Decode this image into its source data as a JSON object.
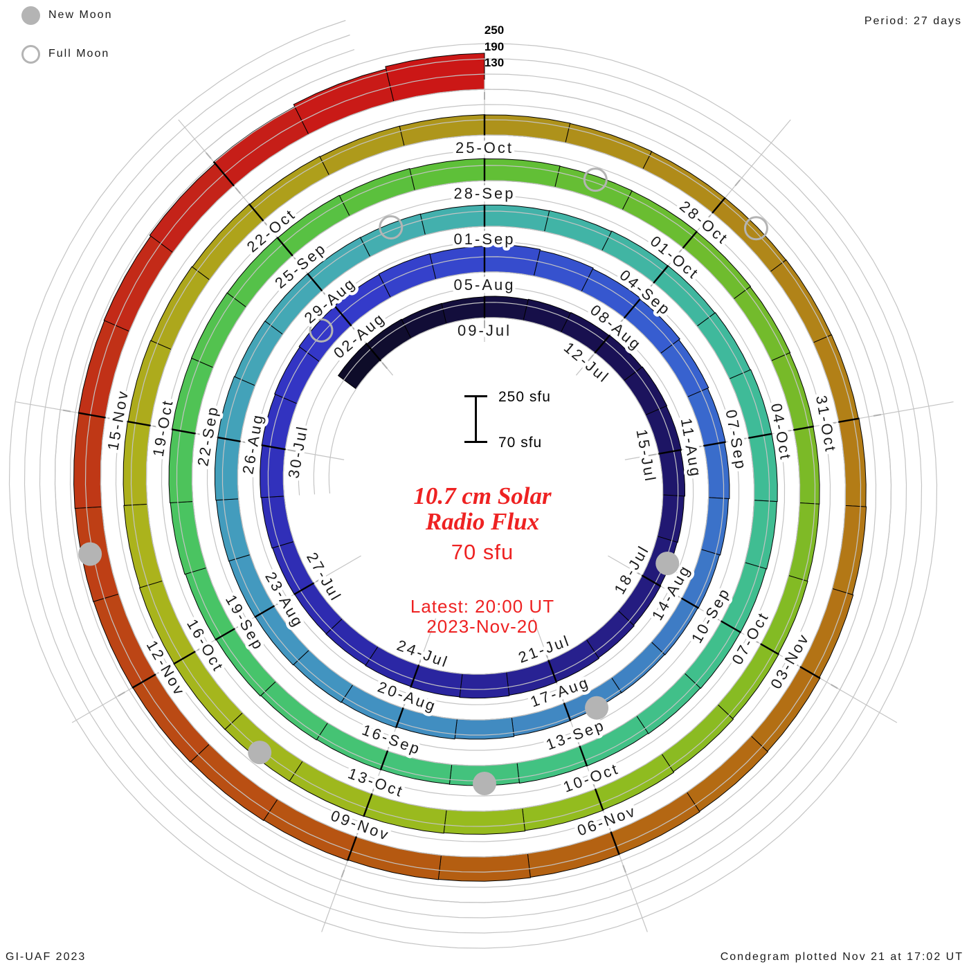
{
  "window": {
    "period_label": "Period: 27 days"
  },
  "legend": {
    "new_moon_label": "New Moon",
    "full_moon_label": "Full Moon"
  },
  "radial_scale_labels": [
    "250",
    "190",
    "130"
  ],
  "scale_bar": {
    "top_label": "250 sfu",
    "bottom_label": "70 sfu"
  },
  "center_text": {
    "title_line1": "10.7 cm Solar",
    "title_line2": "Radio Flux",
    "baseline_value": "70 sfu",
    "latest_line1": "Latest: 20:00 UT",
    "latest_line2": "2023-Nov-20"
  },
  "footer": {
    "credit": "GI-UAF 2023",
    "plotted": "Condegram plotted Nov 21 at 17:02 UT"
  },
  "chart_data": {
    "type": "spiral-bar-condegram",
    "title": "10.7 cm Solar Radio Flux",
    "units": "sfu",
    "period_days": 27,
    "baseline_sfu": 70,
    "radial_scale_max_sfu": 250,
    "gridline_levels_sfu": [
      70,
      130,
      190,
      250
    ],
    "series_start_date": "2023-07-05",
    "series_end_date": "2023-11-20",
    "latest_observation": "20:00 UT 2023-Nov-20",
    "date_labels": [
      "09-Jul",
      "12-Jul",
      "15-Jul",
      "18-Jul",
      "21-Jul",
      "24-Jul",
      "27-Jul",
      "30-Jul",
      "02-Aug",
      "05-Aug",
      "08-Aug",
      "11-Aug",
      "14-Aug",
      "17-Aug",
      "20-Aug",
      "23-Aug",
      "26-Aug",
      "29-Aug",
      "01-Sep",
      "04-Sep",
      "07-Sep",
      "10-Sep",
      "13-Sep",
      "16-Sep",
      "19-Sep",
      "22-Sep",
      "25-Sep",
      "28-Sep",
      "01-Oct",
      "04-Oct",
      "07-Oct",
      "10-Oct",
      "13-Oct",
      "16-Oct",
      "19-Oct",
      "22-Oct",
      "25-Oct",
      "28-Oct",
      "31-Oct",
      "03-Nov",
      "06-Nov",
      "09-Nov",
      "12-Nov",
      "15-Nov"
    ],
    "daily_flux_sfu_estimated": [
      158,
      155,
      153,
      152,
      154,
      156,
      158,
      160,
      162,
      160,
      157,
      154,
      152,
      154,
      157,
      160,
      162,
      164,
      162,
      160,
      158,
      157,
      158,
      160,
      162,
      164,
      167,
      170,
      172,
      174,
      172,
      178,
      174,
      170,
      166,
      161,
      157,
      153,
      149,
      146,
      144,
      142,
      141,
      143,
      146,
      149,
      152,
      154,
      156,
      157,
      158,
      160,
      160,
      158,
      157,
      156,
      155,
      154,
      154,
      155,
      157,
      158,
      160,
      162,
      162,
      160,
      158,
      157,
      155,
      153,
      151,
      149,
      148,
      149,
      151,
      154,
      156,
      159,
      161,
      163,
      164,
      163,
      161,
      159,
      157,
      156,
      155,
      154,
      153,
      151,
      149,
      148,
      147,
      149,
      151,
      154,
      157,
      159,
      161,
      163,
      164,
      165,
      166,
      165,
      163,
      161,
      159,
      157,
      155,
      153,
      151,
      150,
      149,
      148,
      147,
      147,
      148,
      149,
      151,
      153,
      156,
      159,
      161,
      163,
      164,
      166,
      167,
      169,
      171,
      173,
      174,
      175,
      176,
      177,
      179,
      184,
      192,
      202,
      212
    ],
    "new_moon_dates": [
      "2023-07-17",
      "2023-08-16",
      "2023-09-14",
      "2023-10-14",
      "2023-11-13"
    ],
    "full_moon_dates": [
      "2023-08-01",
      "2023-08-30",
      "2023-09-29",
      "2023-10-28"
    ],
    "colormap_stops": [
      {
        "t": 0.0,
        "c": "#0d0c26"
      },
      {
        "t": 0.05,
        "c": "#191052"
      },
      {
        "t": 0.101,
        "c": "#251d84"
      },
      {
        "t": 0.151,
        "c": "#2d2aae"
      },
      {
        "t": 0.201,
        "c": "#3438ca"
      },
      {
        "t": 0.252,
        "c": "#3760d0"
      },
      {
        "t": 0.302,
        "c": "#4084c2"
      },
      {
        "t": 0.353,
        "c": "#4398c0"
      },
      {
        "t": 0.403,
        "c": "#44adb2"
      },
      {
        "t": 0.453,
        "c": "#3fba9a"
      },
      {
        "t": 0.504,
        "c": "#41c284"
      },
      {
        "t": 0.554,
        "c": "#49c464"
      },
      {
        "t": 0.604,
        "c": "#5cc03a"
      },
      {
        "t": 0.655,
        "c": "#79ba28"
      },
      {
        "t": 0.705,
        "c": "#95bc1e"
      },
      {
        "t": 0.755,
        "c": "#adb21c"
      },
      {
        "t": 0.806,
        "c": "#ae941b"
      },
      {
        "t": 0.856,
        "c": "#b37a16"
      },
      {
        "t": 0.906,
        "c": "#b45c11"
      },
      {
        "t": 0.942,
        "c": "#bd4315"
      },
      {
        "t": 0.978,
        "c": "#c52019"
      },
      {
        "t": 1.0,
        "c": "#cc1515"
      }
    ],
    "colors": {
      "date_label": "#1a1a1a",
      "grid": "#c4c4c4",
      "minor_tick": "#b0b0b0",
      "segment_tick": "#000000",
      "moon": "#b4b4b4",
      "accent_red": "#ee2222"
    }
  }
}
